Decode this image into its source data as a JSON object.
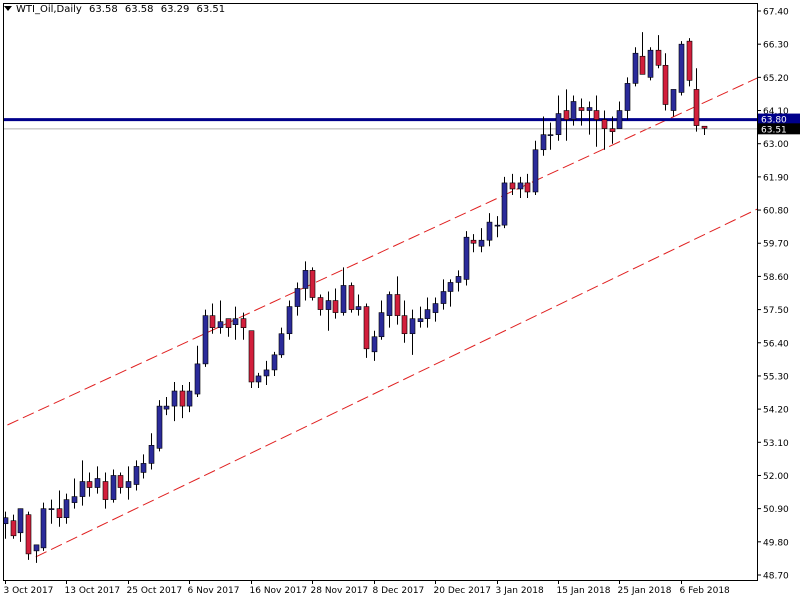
{
  "header": {
    "symbol": "WTI_Oil,Daily",
    "open": "63.58",
    "high": "63.58",
    "low": "63.29",
    "close": "63.51"
  },
  "colors": {
    "bull": "#2b2b9a",
    "bear": "#d21f3c",
    "wick": "#000000",
    "level_line": "#00008b",
    "channel": "#e02020",
    "frame": "#000000"
  },
  "chart_data": {
    "type": "candlestick",
    "title": "",
    "xlabel": "",
    "ylabel": "",
    "ylim": [
      48.7,
      67.8
    ],
    "y_ticks": [
      "67.40",
      "66.30",
      "65.20",
      "64.10",
      "63.00",
      "61.90",
      "60.80",
      "59.70",
      "58.60",
      "57.50",
      "56.40",
      "55.30",
      "54.20",
      "53.10",
      "52.00",
      "50.90",
      "49.80",
      "48.70"
    ],
    "x_ticks": [
      "3 Oct 2017",
      "13 Oct 2017",
      "25 Oct 2017",
      "6 Nov 2017",
      "16 Nov 2017",
      "28 Nov 2017",
      "8 Dec 2017",
      "20 Dec 2017",
      "3 Jan 2018",
      "15 Jan 2018",
      "25 Jan 2018",
      "6 Feb 2018"
    ],
    "x_tick_bar_index": [
      0,
      8,
      16,
      24,
      32,
      40,
      48,
      56,
      64,
      72,
      80,
      88
    ],
    "grid": false,
    "ohlc": [
      [
        50.4,
        50.8,
        49.9,
        50.6
      ],
      [
        50.5,
        50.7,
        49.9,
        50.0
      ],
      [
        50.1,
        50.9,
        49.8,
        50.9
      ],
      [
        50.7,
        50.8,
        49.2,
        49.4
      ],
      [
        49.5,
        49.7,
        49.1,
        49.7
      ],
      [
        49.6,
        51.1,
        49.5,
        50.9
      ],
      [
        50.9,
        51.2,
        50.4,
        50.9
      ],
      [
        50.9,
        51.5,
        50.3,
        50.6
      ],
      [
        50.6,
        51.4,
        50.4,
        51.2
      ],
      [
        51.1,
        51.9,
        50.9,
        51.3
      ],
      [
        51.3,
        52.5,
        51.0,
        51.8
      ],
      [
        51.8,
        52.1,
        51.3,
        51.6
      ],
      [
        51.6,
        52.3,
        51.4,
        51.9
      ],
      [
        51.8,
        52.1,
        50.9,
        51.2
      ],
      [
        51.2,
        52.2,
        51.1,
        52.0
      ],
      [
        52.0,
        52.1,
        51.4,
        51.6
      ],
      [
        51.6,
        52.3,
        51.2,
        51.8
      ],
      [
        51.7,
        52.5,
        51.5,
        52.3
      ],
      [
        52.1,
        52.7,
        51.9,
        52.4
      ],
      [
        52.4,
        53.4,
        52.2,
        53.0
      ],
      [
        52.9,
        54.5,
        52.8,
        54.3
      ],
      [
        54.2,
        54.6,
        54.0,
        54.3
      ],
      [
        54.3,
        55.1,
        53.8,
        54.8
      ],
      [
        54.8,
        55.0,
        53.9,
        54.3
      ],
      [
        54.3,
        55.1,
        54.1,
        54.8
      ],
      [
        54.7,
        56.3,
        54.6,
        55.7
      ],
      [
        55.7,
        57.5,
        55.6,
        57.3
      ],
      [
        57.3,
        57.7,
        56.7,
        56.9
      ],
      [
        56.9,
        57.8,
        56.7,
        57.1
      ],
      [
        57.2,
        57.2,
        56.6,
        56.9
      ],
      [
        57.0,
        57.6,
        56.5,
        57.2
      ],
      [
        57.2,
        57.4,
        56.5,
        56.9
      ],
      [
        56.8,
        56.8,
        54.9,
        55.1
      ],
      [
        55.1,
        55.4,
        54.9,
        55.3
      ],
      [
        55.3,
        55.8,
        55.0,
        55.5
      ],
      [
        55.5,
        56.1,
        55.3,
        56.0
      ],
      [
        56.0,
        56.9,
        55.9,
        56.7
      ],
      [
        56.7,
        57.8,
        56.5,
        57.6
      ],
      [
        57.6,
        58.4,
        57.3,
        58.2
      ],
      [
        58.2,
        59.1,
        57.8,
        58.8
      ],
      [
        58.8,
        58.9,
        57.8,
        57.9
      ],
      [
        57.9,
        58.0,
        57.3,
        57.5
      ],
      [
        57.5,
        58.1,
        56.8,
        57.8
      ],
      [
        57.8,
        58.2,
        57.2,
        57.4
      ],
      [
        57.4,
        58.9,
        57.3,
        58.3
      ],
      [
        58.3,
        58.4,
        57.4,
        57.5
      ],
      [
        57.5,
        58.0,
        57.3,
        57.6
      ],
      [
        57.6,
        57.7,
        55.9,
        56.2
      ],
      [
        56.1,
        56.8,
        55.8,
        56.6
      ],
      [
        56.6,
        57.8,
        56.5,
        57.4
      ],
      [
        57.3,
        58.1,
        56.9,
        58.0
      ],
      [
        58.0,
        58.6,
        57.0,
        57.3
      ],
      [
        57.3,
        57.8,
        56.4,
        56.7
      ],
      [
        56.7,
        57.5,
        56.0,
        57.2
      ],
      [
        57.1,
        57.6,
        56.9,
        57.2
      ],
      [
        57.2,
        57.9,
        56.9,
        57.5
      ],
      [
        57.4,
        57.9,
        57.1,
        57.7
      ],
      [
        57.7,
        58.5,
        57.5,
        58.1
      ],
      [
        58.1,
        58.5,
        57.6,
        58.4
      ],
      [
        58.4,
        58.8,
        58.1,
        58.6
      ],
      [
        58.5,
        60.1,
        58.3,
        59.9
      ],
      [
        59.8,
        60.0,
        59.4,
        59.7
      ],
      [
        59.6,
        60.2,
        59.4,
        59.8
      ],
      [
        59.8,
        60.7,
        59.6,
        60.4
      ],
      [
        60.3,
        60.6,
        59.9,
        60.3
      ],
      [
        60.3,
        61.9,
        60.2,
        61.7
      ],
      [
        61.7,
        62.0,
        61.3,
        61.5
      ],
      [
        61.5,
        61.9,
        61.2,
        61.7
      ],
      [
        61.7,
        62.0,
        61.2,
        61.4
      ],
      [
        61.4,
        63.1,
        61.3,
        62.8
      ],
      [
        62.8,
        63.9,
        62.6,
        63.3
      ],
      [
        63.3,
        63.7,
        62.8,
        63.3
      ],
      [
        63.3,
        64.6,
        63.1,
        64.0
      ],
      [
        64.1,
        64.8,
        63.1,
        63.8
      ],
      [
        63.8,
        64.6,
        63.6,
        64.4
      ],
      [
        64.2,
        64.5,
        63.6,
        64.1
      ],
      [
        64.1,
        64.4,
        63.3,
        64.2
      ],
      [
        64.1,
        64.6,
        62.9,
        63.8
      ],
      [
        63.8,
        64.1,
        62.8,
        63.5
      ],
      [
        63.5,
        63.9,
        63.0,
        63.4
      ],
      [
        63.5,
        64.4,
        63.5,
        64.1
      ],
      [
        64.1,
        65.2,
        63.8,
        65.0
      ],
      [
        65.0,
        66.2,
        64.9,
        66.0
      ],
      [
        65.9,
        66.7,
        65.3,
        65.3
      ],
      [
        65.2,
        66.2,
        65.1,
        66.1
      ],
      [
        66.1,
        66.6,
        65.5,
        65.6
      ],
      [
        65.6,
        66.0,
        64.1,
        64.3
      ],
      [
        64.1,
        64.8,
        63.9,
        64.8
      ],
      [
        64.7,
        66.4,
        64.6,
        66.3
      ],
      [
        66.4,
        66.5,
        64.9,
        65.1
      ],
      [
        64.8,
        65.5,
        63.4,
        63.6
      ],
      [
        63.58,
        63.58,
        63.29,
        63.51
      ]
    ],
    "levels": [
      {
        "label": "63.80",
        "value": 63.8
      },
      {
        "label": "63.51",
        "value": 63.51
      }
    ],
    "trendlines": [
      {
        "x": [
          -3.7,
          116.8
        ],
        "y": [
          53.2,
          67.4
        ]
      },
      {
        "x": [
          4.0,
          120.5
        ],
        "y": [
          49.3,
          63.6
        ]
      }
    ]
  }
}
